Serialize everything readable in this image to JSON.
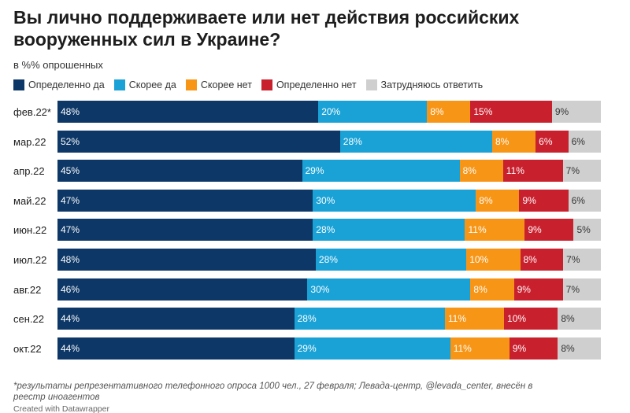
{
  "title": "Вы лично поддерживаете или нет действия российских вооруженных сил в Украине?",
  "subtitle": "в %% опрошенных",
  "footnote": "*результаты репрезентативного телефонного опроса 1000 чел., 27 февраля; Левада-центр, @levada_center, внесён в реестр иноагентов",
  "credit": "Created with Datawrapper",
  "chart_data": {
    "type": "bar",
    "stacked": true,
    "orientation": "horizontal",
    "categories": [
      "фев.22*",
      "мар.22",
      "апр.22",
      "май.22",
      "июн.22",
      "июл.22",
      "авг.22",
      "сен.22",
      "окт.22"
    ],
    "series": [
      {
        "name": "Определенно да",
        "color": "#0d3766",
        "values": [
          48,
          52,
          45,
          47,
          47,
          48,
          46,
          44,
          44
        ]
      },
      {
        "name": "Скорее да",
        "color": "#1aa2d6",
        "values": [
          20,
          28,
          29,
          30,
          28,
          28,
          30,
          28,
          29
        ]
      },
      {
        "name": "Скорее нет",
        "color": "#f79516",
        "values": [
          8,
          8,
          8,
          8,
          11,
          10,
          8,
          11,
          11
        ]
      },
      {
        "name": "Определенно нет",
        "color": "#c9202e",
        "values": [
          15,
          6,
          11,
          9,
          9,
          8,
          9,
          10,
          9
        ]
      },
      {
        "name": "Затрудняюсь ответить",
        "color": "#cfcfcf",
        "values": [
          9,
          6,
          7,
          6,
          5,
          7,
          7,
          8,
          8
        ]
      }
    ],
    "value_suffix": "%",
    "legend_position": "top-left",
    "grid": false
  }
}
